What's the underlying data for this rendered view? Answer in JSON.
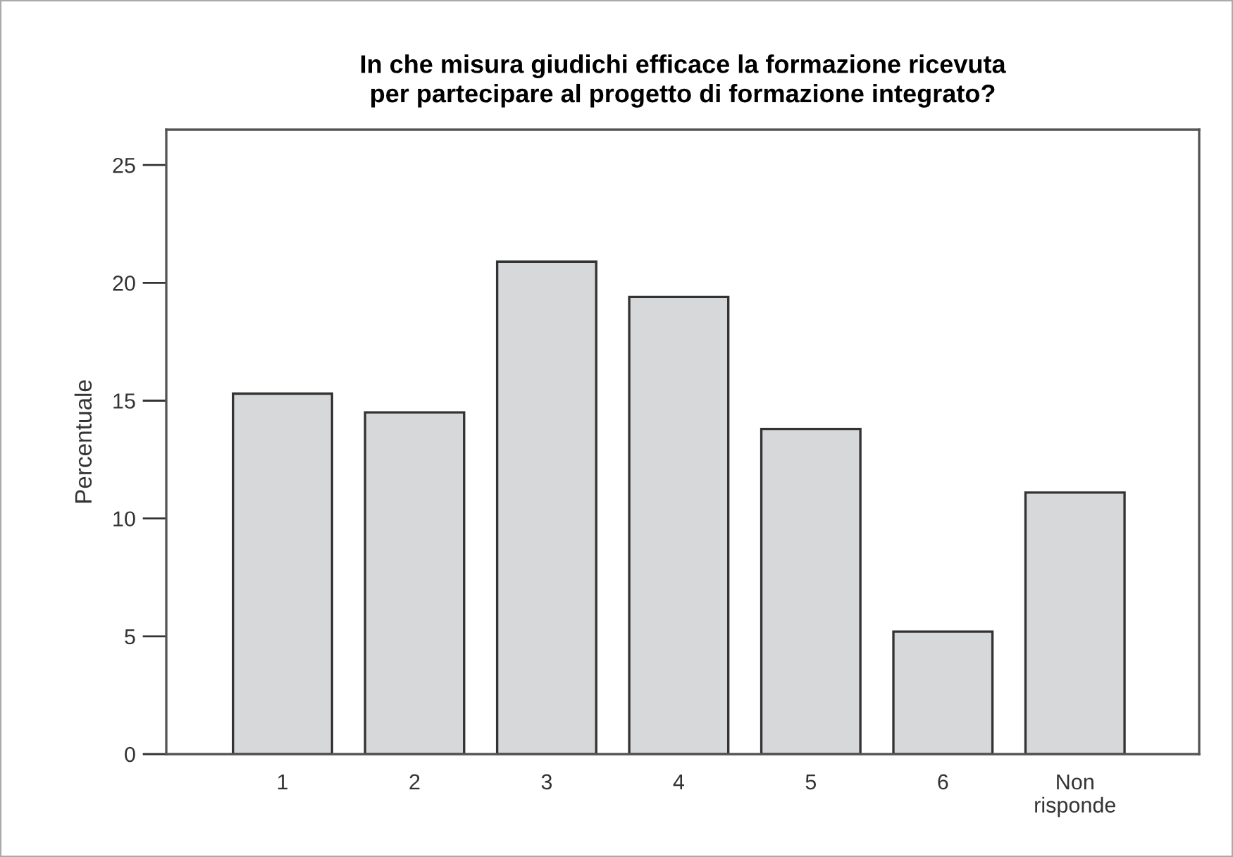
{
  "chart_data": {
    "type": "bar",
    "title": "In che misura giudichi efficace la formazione ricevuta\nper partecipare al progetto di formazione integrato?",
    "ylabel": "Percentuale",
    "categories": [
      "1",
      "2",
      "3",
      "4",
      "5",
      "6",
      "Non\nrisponde"
    ],
    "values": [
      15.3,
      14.5,
      20.9,
      19.4,
      13.8,
      5.2,
      11.1
    ],
    "color": "#d7d8da",
    "ylim": [
      0,
      26.5
    ],
    "yticks": [
      0,
      5,
      10,
      15,
      20,
      25
    ],
    "grid": false,
    "legend": false
  }
}
